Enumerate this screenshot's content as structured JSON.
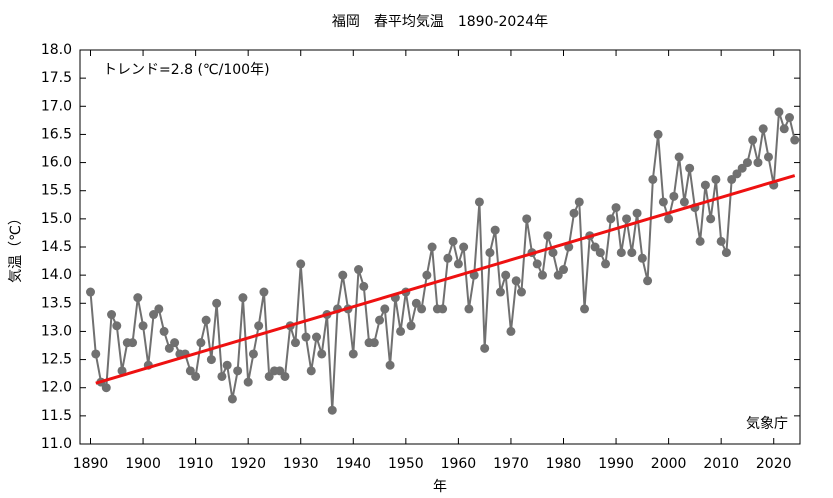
{
  "chart_data": {
    "type": "line",
    "title": "福岡　春平均気温　1890-2024年",
    "xlabel": "年",
    "ylabel": "気温（℃）",
    "annotations": [
      "トレンド=2.8 (℃/100年)",
      "気象庁"
    ],
    "x": [
      1890,
      1891,
      1892,
      1893,
      1894,
      1895,
      1896,
      1897,
      1898,
      1899,
      1900,
      1901,
      1902,
      1903,
      1904,
      1905,
      1906,
      1907,
      1908,
      1909,
      1910,
      1911,
      1912,
      1913,
      1914,
      1915,
      1916,
      1917,
      1918,
      1919,
      1920,
      1921,
      1922,
      1923,
      1924,
      1925,
      1926,
      1927,
      1928,
      1929,
      1930,
      1931,
      1932,
      1933,
      1934,
      1935,
      1936,
      1937,
      1938,
      1939,
      1940,
      1941,
      1942,
      1943,
      1944,
      1945,
      1946,
      1947,
      1948,
      1949,
      1950,
      1951,
      1952,
      1953,
      1954,
      1955,
      1956,
      1957,
      1958,
      1959,
      1960,
      1961,
      1962,
      1963,
      1964,
      1965,
      1966,
      1967,
      1968,
      1969,
      1970,
      1971,
      1972,
      1973,
      1974,
      1975,
      1976,
      1977,
      1978,
      1979,
      1980,
      1981,
      1982,
      1983,
      1984,
      1985,
      1986,
      1987,
      1988,
      1989,
      1990,
      1991,
      1992,
      1993,
      1994,
      1995,
      1996,
      1997,
      1998,
      1999,
      2000,
      2001,
      2002,
      2003,
      2004,
      2005,
      2006,
      2007,
      2008,
      2009,
      2010,
      2011,
      2012,
      2013,
      2014,
      2015,
      2016,
      2017,
      2018,
      2019,
      2020,
      2021,
      2022,
      2023,
      2024
    ],
    "series": [
      {
        "name": "春平均気温",
        "color": "#707070",
        "values": [
          13.7,
          12.6,
          12.1,
          12.0,
          13.3,
          13.1,
          12.3,
          12.8,
          12.8,
          13.6,
          13.1,
          12.4,
          13.3,
          13.4,
          13.0,
          12.7,
          12.8,
          12.6,
          12.6,
          12.3,
          12.2,
          12.8,
          13.2,
          12.5,
          13.5,
          12.2,
          12.4,
          11.8,
          12.3,
          13.6,
          12.1,
          12.6,
          13.1,
          13.7,
          12.2,
          12.3,
          12.3,
          12.2,
          13.1,
          12.8,
          14.2,
          12.9,
          12.3,
          12.9,
          12.6,
          13.3,
          11.6,
          13.4,
          14.0,
          13.4,
          12.6,
          14.1,
          13.8,
          12.8,
          12.8,
          13.2,
          13.4,
          12.4,
          13.6,
          13.0,
          13.7,
          13.1,
          13.5,
          13.4,
          14.0,
          14.5,
          13.4,
          13.4,
          14.3,
          14.6,
          14.2,
          14.5,
          13.4,
          14.0,
          15.3,
          12.7,
          14.4,
          14.8,
          13.7,
          14.0,
          13.0,
          13.9,
          13.7,
          15.0,
          14.4,
          14.2,
          14.0,
          14.7,
          14.4,
          14.0,
          14.1,
          14.5,
          15.1,
          15.3,
          13.4,
          14.7,
          14.5,
          14.4,
          14.2,
          15.0,
          15.2,
          14.4,
          15.0,
          14.4,
          15.1,
          14.3,
          13.9,
          15.7,
          16.5,
          15.3,
          15.0,
          15.4,
          16.1,
          15.3,
          15.9,
          15.2,
          14.6,
          15.6,
          15.0,
          15.7,
          14.6,
          14.4,
          15.7,
          15.8,
          15.9,
          16.0,
          16.4,
          16.0,
          16.6,
          16.1,
          15.6,
          16.9,
          16.6,
          16.8,
          16.4
        ]
      }
    ],
    "trend": {
      "color": "#ee1111",
      "x": [
        1891,
        2024
      ],
      "values": [
        12.08,
        15.77
      ]
    },
    "xlim": [
      1888,
      2025
    ],
    "ylim": [
      11.0,
      18.0
    ],
    "xticks": [
      1890,
      1900,
      1910,
      1920,
      1930,
      1940,
      1950,
      1960,
      1970,
      1980,
      1990,
      2000,
      2010,
      2020
    ],
    "yticks": [
      {
        "value": 11,
        "label": "11.0"
      },
      {
        "value": 11.5,
        "label": "11.5"
      },
      {
        "value": 12,
        "label": "12.0"
      },
      {
        "value": 12.5,
        "label": "12.5"
      },
      {
        "value": 13,
        "label": "13.0"
      },
      {
        "value": 13.5,
        "label": "13.5"
      },
      {
        "value": 14,
        "label": "14.0"
      },
      {
        "value": 14.5,
        "label": "14.5"
      },
      {
        "value": 15,
        "label": "15.0"
      },
      {
        "value": 15.5,
        "label": "15.5"
      },
      {
        "value": 16,
        "label": "16.0"
      },
      {
        "value": 16.5,
        "label": "16.5"
      },
      {
        "value": 17,
        "label": "17.0"
      },
      {
        "value": 17.5,
        "label": "17.5"
      },
      {
        "value": 18,
        "label": "18.0"
      }
    ],
    "grid": false
  }
}
